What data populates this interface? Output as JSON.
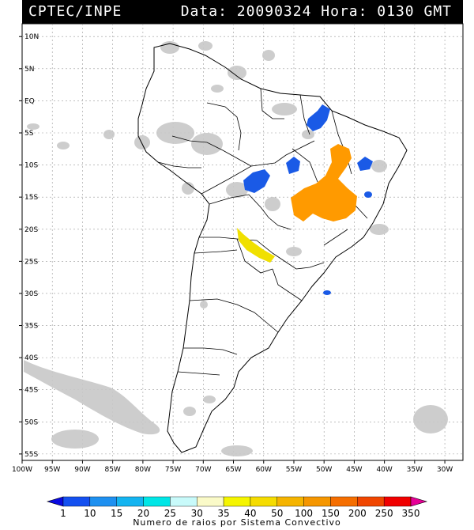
{
  "header": {
    "source": "CPTEC/INPE",
    "datetime": "Data: 20090324 Hora: 0130 GMT"
  },
  "map": {
    "lat_labels": [
      "10N",
      "5N",
      "EQ",
      "5S",
      "10S",
      "15S",
      "20S",
      "25S",
      "30S",
      "35S",
      "40S",
      "45S",
      "50S",
      "55S"
    ],
    "lon_labels": [
      "100W",
      "95W",
      "90W",
      "85W",
      "80W",
      "75W",
      "70W",
      "65W",
      "60W",
      "55W",
      "50W",
      "45W",
      "40W",
      "35W",
      "30W"
    ],
    "extent": {
      "lon_min": -100,
      "lon_max": -27,
      "lat_min": -56,
      "lat_max": 12
    }
  },
  "colors": {
    "cloud": "#c8c8c8",
    "cells_blue": "#1a5ae6",
    "cells_orange": "#ff9a00",
    "cells_yellow": "#f0e000"
  },
  "legend": {
    "values": [
      "1",
      "10",
      "15",
      "20",
      "25",
      "30",
      "35",
      "40",
      "50",
      "100",
      "150",
      "200",
      "250",
      "350"
    ],
    "colors": [
      "#0a0ae0",
      "#1450f0",
      "#1e90f0",
      "#14b4f0",
      "#00e6e6",
      "#c8fafa",
      "#fafac8",
      "#f5f500",
      "#f5dc00",
      "#f5b400",
      "#f59600",
      "#f56e00",
      "#f04600",
      "#f00000",
      "#e60096"
    ],
    "caption": "Numero de raios por Sistema Convectivo"
  }
}
